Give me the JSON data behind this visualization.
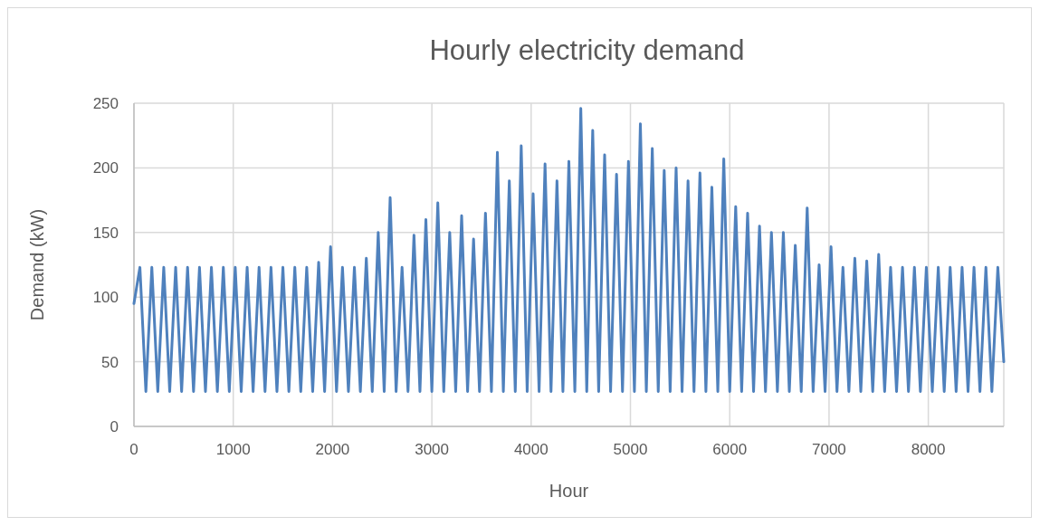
{
  "chart_data": {
    "type": "line",
    "title": "Hourly electricity demand",
    "xlabel": "Hour",
    "ylabel": "Demand (kW)",
    "x": [
      0,
      60,
      120,
      180,
      240,
      300,
      360,
      420,
      480,
      540,
      600,
      660,
      720,
      780,
      840,
      900,
      960,
      1020,
      1080,
      1140,
      1200,
      1260,
      1320,
      1380,
      1440,
      1500,
      1560,
      1620,
      1680,
      1740,
      1800,
      1860,
      1920,
      1980,
      2040,
      2100,
      2160,
      2220,
      2280,
      2340,
      2400,
      2460,
      2520,
      2580,
      2640,
      2700,
      2760,
      2820,
      2880,
      2940,
      3000,
      3060,
      3120,
      3180,
      3240,
      3300,
      3360,
      3420,
      3480,
      3540,
      3600,
      3660,
      3720,
      3780,
      3840,
      3900,
      3960,
      4020,
      4080,
      4140,
      4200,
      4260,
      4320,
      4380,
      4440,
      4500,
      4560,
      4620,
      4680,
      4740,
      4800,
      4860,
      4920,
      4980,
      5040,
      5100,
      5160,
      5220,
      5280,
      5340,
      5400,
      5460,
      5520,
      5580,
      5640,
      5700,
      5760,
      5820,
      5880,
      5940,
      6000,
      6060,
      6120,
      6180,
      6240,
      6300,
      6360,
      6420,
      6480,
      6540,
      6600,
      6660,
      6720,
      6780,
      6840,
      6900,
      6960,
      7020,
      7080,
      7140,
      7200,
      7260,
      7320,
      7380,
      7440,
      7500,
      7560,
      7620,
      7680,
      7740,
      7800,
      7860,
      7920,
      7980,
      8040,
      8100,
      8160,
      8220,
      8280,
      8340,
      8400,
      8460,
      8520,
      8580,
      8640,
      8700,
      8760
    ],
    "series": [
      {
        "color": "#4f81bd",
        "values": [
          95,
          123,
          27,
          123,
          27,
          123,
          27,
          123,
          27,
          123,
          27,
          123,
          27,
          123,
          27,
          123,
          27,
          123,
          27,
          123,
          27,
          123,
          27,
          123,
          27,
          123,
          27,
          123,
          27,
          123,
          27,
          127,
          27,
          139,
          27,
          123,
          27,
          123,
          27,
          130,
          27,
          150,
          27,
          177,
          27,
          123,
          27,
          148,
          27,
          160,
          27,
          173,
          27,
          150,
          27,
          163,
          27,
          145,
          27,
          165,
          27,
          212,
          27,
          190,
          27,
          217,
          27,
          180,
          27,
          203,
          27,
          190,
          27,
          205,
          27,
          246,
          27,
          229,
          27,
          210,
          27,
          195,
          27,
          205,
          27,
          234,
          27,
          215,
          27,
          198,
          27,
          200,
          27,
          190,
          27,
          196,
          27,
          185,
          27,
          207,
          27,
          170,
          27,
          165,
          27,
          155,
          27,
          150,
          27,
          150,
          27,
          140,
          27,
          169,
          27,
          125,
          27,
          139,
          27,
          123,
          27,
          130,
          27,
          128,
          27,
          133,
          27,
          123,
          27,
          123,
          27,
          123,
          27,
          123,
          27,
          123,
          27,
          123,
          27,
          123,
          27,
          123,
          27,
          123,
          27,
          123,
          50
        ]
      }
    ],
    "xlim": [
      0,
      8760
    ],
    "xticks": [
      0,
      1000,
      2000,
      3000,
      4000,
      5000,
      6000,
      7000,
      8000
    ],
    "ylim": [
      0,
      250
    ],
    "yticks": [
      0,
      50,
      100,
      150,
      200,
      250
    ],
    "grid": true,
    "marker": "none",
    "line_style": "solid"
  }
}
